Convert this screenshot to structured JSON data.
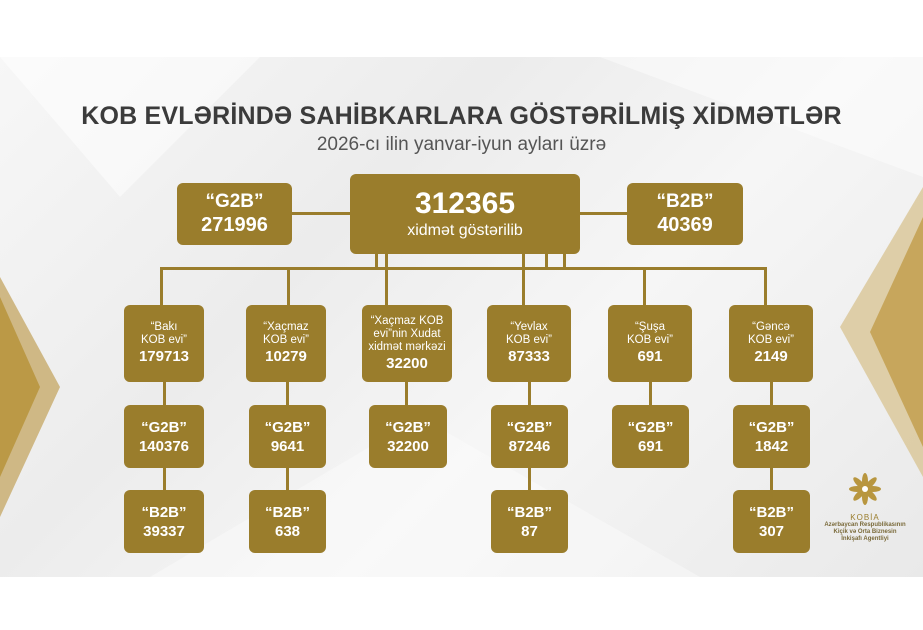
{
  "title": "KOB EVLƏRİNDƏ SAHİBKARLARA GÖSTƏRİLMİŞ XİDMƏTLƏR",
  "subtitle": "2026-cı ilin yanvar-iyun ayları üzrə",
  "colors": {
    "box": "#9a7d2c",
    "title": "#3b3b3b",
    "background": "#f2f2f2"
  },
  "top": {
    "g2b": {
      "label": "“G2B”",
      "value": "271996"
    },
    "total": {
      "value": "312365",
      "label": "xidmət göstərilib"
    },
    "b2b": {
      "label": "“B2B”",
      "value": "40369"
    }
  },
  "houses": [
    {
      "label": "“Bakı\nKOB evi”",
      "value": "179713",
      "g2b_label": "“G2B”",
      "g2b": "140376",
      "b2b_label": "“B2B”",
      "b2b": "39337"
    },
    {
      "label": "“Xaçmaz\nKOB evi”",
      "value": "10279",
      "g2b_label": "“G2B”",
      "g2b": "9641",
      "b2b_label": "“B2B”",
      "b2b": "638"
    },
    {
      "label": "“Xaçmaz KOB\nevi”nin Xudat\nxidmət mərkəzi",
      "value": "32200",
      "g2b_label": "“G2B”",
      "g2b": "32200"
    },
    {
      "label": "“Yevlax\nKOB evi”",
      "value": "87333",
      "g2b_label": "“G2B”",
      "g2b": "87246",
      "b2b_label": "“B2B”",
      "b2b": "87"
    },
    {
      "label": "“Şuşa\nKOB evi”",
      "value": "691",
      "g2b_label": "“G2B”",
      "g2b": "691"
    },
    {
      "label": "“Gəncə\nKOB evi”",
      "value": "2149",
      "g2b_label": "“G2B”",
      "g2b": "1842",
      "b2b_label": "“B2B”",
      "b2b": "307"
    }
  ],
  "logo": {
    "brand": "KOBİA",
    "org": "Azərbaycan Respublikasının\nKiçik və Orta Biznesin\nİnkişafı Agentliyi"
  }
}
